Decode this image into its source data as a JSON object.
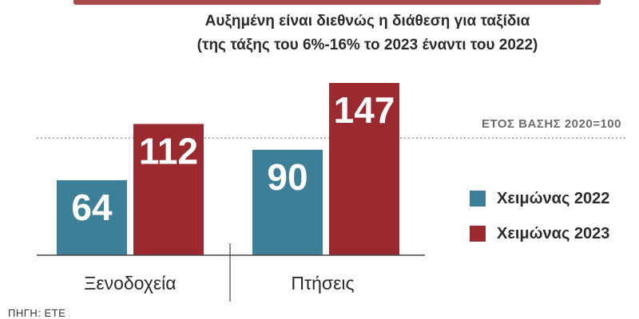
{
  "subtitle_line1": "Αυξημένη είναι διεθνώς η διάθεση για ταξίδια",
  "subtitle_line2": "(της τάξης του 6%-16% το 2023 έναντι του 2022)",
  "source": "ΠΗΓΗ: ΕΤΕ",
  "chart_data": {
    "type": "bar",
    "categories": [
      "Ξενοδοχεία",
      "Πτήσεις"
    ],
    "series": [
      {
        "name": "Χειμώνας 2022",
        "values": [
          64,
          90
        ],
        "color": "#3c7f96"
      },
      {
        "name": "Χειμώνας 2023",
        "values": [
          112,
          147
        ],
        "color": "#9b2a30"
      }
    ],
    "baseline": {
      "value": 100,
      "label": "ΕΤΟΣ ΒΑΣΗΣ 2020=100"
    },
    "ylim": [
      0,
      147
    ],
    "legend_position": "right",
    "grid": false
  }
}
